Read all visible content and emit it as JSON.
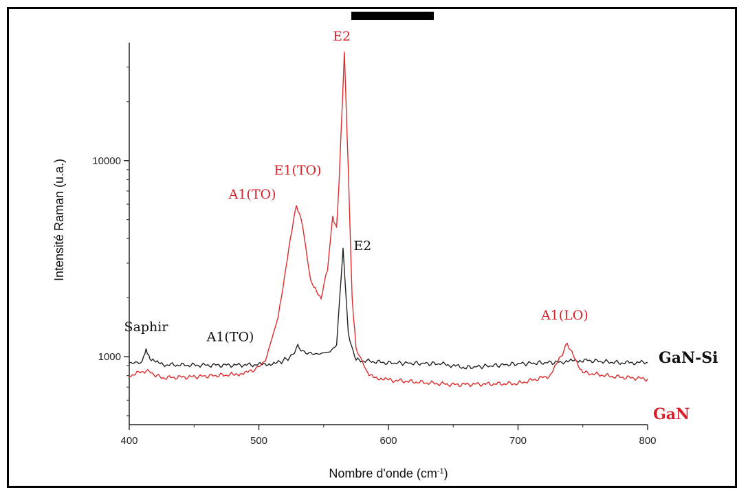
{
  "chart_data": {
    "type": "line",
    "xlabel": "Nombre d'onde (cm",
    "xlabel_sup": "-1",
    "xlabel_suffix": ")",
    "ylabel": "Intensité Raman (u.a.)",
    "xlim": [
      400,
      800
    ],
    "ylim": [
      450,
      40000
    ],
    "yscale": "log",
    "x_ticks": [
      400,
      500,
      600,
      700,
      800
    ],
    "x_tick_labels": [
      "400",
      "500",
      "600",
      "700",
      "800"
    ],
    "y_ticks": [
      1000,
      10000
    ],
    "y_tick_labels": [
      "1000",
      "10000"
    ],
    "grid": false,
    "legend_position": "right",
    "series": [
      {
        "name": "GaN-Si",
        "color": "#222222",
        "points": [
          [
            400,
            930
          ],
          [
            410,
            935
          ],
          [
            413,
            1100
          ],
          [
            416,
            960
          ],
          [
            425,
            910
          ],
          [
            450,
            905
          ],
          [
            475,
            905
          ],
          [
            500,
            910
          ],
          [
            515,
            930
          ],
          [
            525,
            1000
          ],
          [
            530,
            1130
          ],
          [
            535,
            1050
          ],
          [
            545,
            1030
          ],
          [
            555,
            1060
          ],
          [
            560,
            1150
          ],
          [
            565,
            3600
          ],
          [
            569,
            1300
          ],
          [
            575,
            960
          ],
          [
            600,
            930
          ],
          [
            640,
            920
          ],
          [
            660,
            880
          ],
          [
            700,
            920
          ],
          [
            735,
            940
          ],
          [
            750,
            960
          ],
          [
            780,
            930
          ],
          [
            800,
            935
          ]
        ]
      },
      {
        "name": "GaN",
        "color": "#e02a2a",
        "points": [
          [
            400,
            800
          ],
          [
            413,
            850
          ],
          [
            425,
            780
          ],
          [
            450,
            790
          ],
          [
            480,
            810
          ],
          [
            495,
            840
          ],
          [
            505,
            950
          ],
          [
            515,
            1600
          ],
          [
            522,
            3200
          ],
          [
            529,
            6000
          ],
          [
            534,
            4600
          ],
          [
            540,
            2400
          ],
          [
            548,
            2000
          ],
          [
            553,
            2800
          ],
          [
            557,
            5200
          ],
          [
            560,
            4500
          ],
          [
            562,
            8000
          ],
          [
            566,
            36000
          ],
          [
            569,
            9000
          ],
          [
            572,
            2000
          ],
          [
            575,
            1100
          ],
          [
            585,
            800
          ],
          [
            600,
            760
          ],
          [
            650,
            720
          ],
          [
            700,
            730
          ],
          [
            725,
            800
          ],
          [
            733,
            1000
          ],
          [
            738,
            1170
          ],
          [
            743,
            1000
          ],
          [
            750,
            830
          ],
          [
            775,
            790
          ],
          [
            800,
            770
          ]
        ]
      }
    ],
    "annotations": [
      {
        "text": "Saphir",
        "x": 413,
        "y": 1350,
        "color": "black"
      },
      {
        "text": "A1(TO)",
        "x": 478,
        "y": 1200,
        "color": "black"
      },
      {
        "text": "A1(TO)",
        "x": 495,
        "y": 6400,
        "color": "red"
      },
      {
        "text": "E1(TO)",
        "x": 530,
        "y": 8500,
        "color": "red"
      },
      {
        "text": "E2",
        "x": 564,
        "y": 41000,
        "color": "red"
      },
      {
        "text": "E2",
        "x": 580,
        "y": 3500,
        "color": "black"
      },
      {
        "text": "A1(LO)",
        "x": 736,
        "y": 1550,
        "color": "red"
      }
    ],
    "legend": [
      {
        "text": "GaN-Si",
        "color": "black"
      },
      {
        "text": "GaN",
        "color": "red"
      }
    ]
  }
}
